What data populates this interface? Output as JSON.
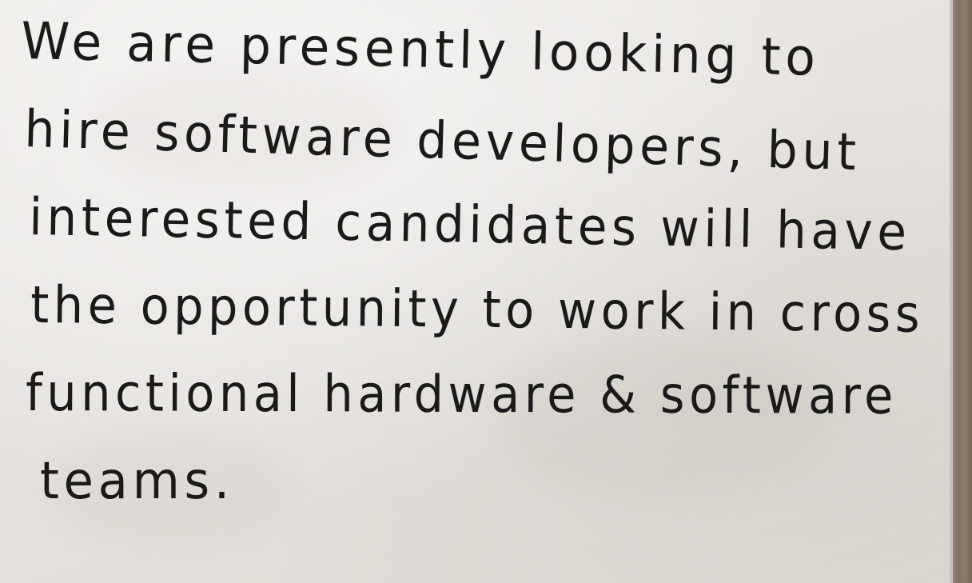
{
  "whiteboard": {
    "lines": [
      "We are presently looking to",
      "hire software developers, but",
      "interested candidates will have",
      "the opportunity to work in cross",
      "functional hardware & software",
      "teams."
    ]
  }
}
